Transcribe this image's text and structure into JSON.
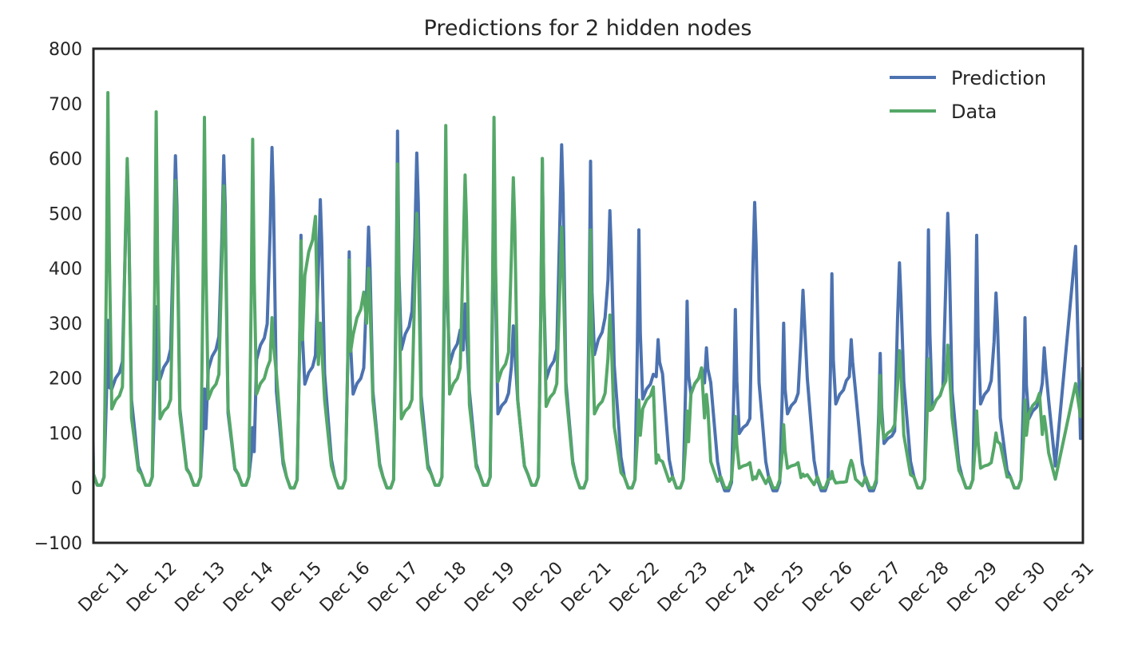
{
  "chart_data": {
    "type": "line",
    "title": "Predictions for 2 hidden nodes",
    "xlabel": "",
    "ylabel": "",
    "ylim": [
      -100,
      800
    ],
    "yticks": [
      -100,
      0,
      100,
      200,
      300,
      400,
      500,
      600,
      700,
      800
    ],
    "yticklabels": [
      "−100",
      "0",
      "100",
      "200",
      "300",
      "400",
      "500",
      "600",
      "700",
      "800"
    ],
    "xlim": [
      0,
      20.5
    ],
    "xticks": [
      0.5,
      1.5,
      2.5,
      3.5,
      4.5,
      5.5,
      6.5,
      7.5,
      8.5,
      9.5,
      10.5,
      11.5,
      12.5,
      13.5,
      14.5,
      15.5,
      16.5,
      17.5,
      18.5,
      19.5,
      20.5
    ],
    "xticklabels": [
      "Dec 11",
      "Dec 12",
      "Dec 13",
      "Dec 14",
      "Dec 15",
      "Dec 16",
      "Dec 17",
      "Dec 18",
      "Dec 19",
      "Dec 20",
      "Dec 21",
      "Dec 22",
      "Dec 23",
      "Dec 24",
      "Dec 25",
      "Dec 26",
      "Dec 27",
      "Dec 28",
      "Dec 29",
      "Dec 30",
      "Dec 31"
    ],
    "grid": false,
    "legend": {
      "position": "top-right",
      "entries": [
        "Prediction",
        "Data"
      ]
    },
    "colors": {
      "Prediction": "#4c72b0",
      "Data": "#55a868"
    },
    "days": [
      {
        "night": 5,
        "morning": 305,
        "mid": 200,
        "evening": 585,
        "late": 100
      },
      {
        "night": 5,
        "morning": 330,
        "mid": 220,
        "evening": 605,
        "late": 90
      },
      {
        "night": 5,
        "morning": 180,
        "mid": 240,
        "evening": 605,
        "late": 85
      },
      {
        "night": 5,
        "morning": 110,
        "mid": 260,
        "evening": 620,
        "late": 110
      },
      {
        "night": 0,
        "morning": 460,
        "mid": 210,
        "evening": 525,
        "late": 130
      },
      {
        "night": 0,
        "morning": 430,
        "mid": 190,
        "evening": 475,
        "late": 110
      },
      {
        "night": 0,
        "morning": 650,
        "mid": 280,
        "evening": 610,
        "late": 105
      },
      {
        "night": 5,
        "morning": 580,
        "mid": 250,
        "evening": 335,
        "late": 110
      },
      {
        "night": 5,
        "morning": 605,
        "mid": 150,
        "evening": 295,
        "late": 100
      },
      {
        "night": 5,
        "morning": 600,
        "mid": 220,
        "evening": 625,
        "late": 120
      },
      {
        "night": 0,
        "morning": 595,
        "mid": 270,
        "evening": 505,
        "late": 140
      },
      {
        "night": 0,
        "morning": 470,
        "mid": 180,
        "evening": 270,
        "late": 130
      },
      {
        "night": 0,
        "morning": 340,
        "mid": 190,
        "evening": 255,
        "late": 120
      },
      {
        "night": -5,
        "morning": 325,
        "mid": 110,
        "evening": 520,
        "late": 120
      },
      {
        "night": -5,
        "morning": 300,
        "mid": 150,
        "evening": 360,
        "late": 125
      },
      {
        "night": -5,
        "morning": 390,
        "mid": 170,
        "evening": 270,
        "late": 110
      },
      {
        "night": -5,
        "morning": 245,
        "mid": 90,
        "evening": 410,
        "late": 120
      },
      {
        "night": 0,
        "morning": 470,
        "mid": 160,
        "evening": 500,
        "late": 110
      },
      {
        "night": 0,
        "morning": 460,
        "mid": 170,
        "evening": 355,
        "late": 80
      },
      {
        "night": 0,
        "morning": 310,
        "mid": 140,
        "evening": 255,
        "late": 100
      }
    ],
    "dataDays": [
      {
        "night": 5,
        "morning": 720,
        "mid": 160,
        "evening": 600,
        "late": 80
      },
      {
        "night": 5,
        "morning": 685,
        "mid": 140,
        "evening": 560,
        "late": 85
      },
      {
        "night": 5,
        "morning": 675,
        "mid": 180,
        "evening": 550,
        "late": 90
      },
      {
        "night": 5,
        "morning": 635,
        "mid": 190,
        "evening": 310,
        "late": 130
      },
      {
        "night": 0,
        "morning": 450,
        "mid": 430,
        "evening": 300,
        "late": 100
      },
      {
        "night": 0,
        "morning": 415,
        "mid": 310,
        "evening": 400,
        "late": 100
      },
      {
        "night": 0,
        "morning": 590,
        "mid": 140,
        "evening": 500,
        "late": 90
      },
      {
        "night": 5,
        "morning": 660,
        "mid": 190,
        "evening": 570,
        "late": 95
      },
      {
        "night": 5,
        "morning": 675,
        "mid": 215,
        "evening": 565,
        "late": 100
      },
      {
        "night": 5,
        "morning": 600,
        "mid": 165,
        "evening": 475,
        "late": 110
      },
      {
        "night": 0,
        "morning": 470,
        "mid": 150,
        "evening": 315,
        "late": 70
      },
      {
        "night": 0,
        "morning": 160,
        "mid": 160,
        "evening": 60,
        "late": 30
      },
      {
        "night": 0,
        "morning": 140,
        "mid": 190,
        "evening": 170,
        "late": 30
      },
      {
        "night": 0,
        "morning": 130,
        "mid": 40,
        "evening": 20,
        "late": 20
      },
      {
        "night": 0,
        "morning": 115,
        "mid": 40,
        "evening": 25,
        "late": 15
      },
      {
        "night": 0,
        "morning": 30,
        "mid": 10,
        "evening": 50,
        "late": 10
      },
      {
        "night": 0,
        "morning": 205,
        "mid": 100,
        "evening": 250,
        "late": 60
      },
      {
        "night": 0,
        "morning": 235,
        "mid": 160,
        "evening": 260,
        "late": 80
      },
      {
        "night": 0,
        "morning": 140,
        "mid": 40,
        "evening": 100,
        "late": 50
      },
      {
        "night": 0,
        "morning": 160,
        "mid": 150,
        "evening": 130,
        "late": 40
      }
    ]
  }
}
